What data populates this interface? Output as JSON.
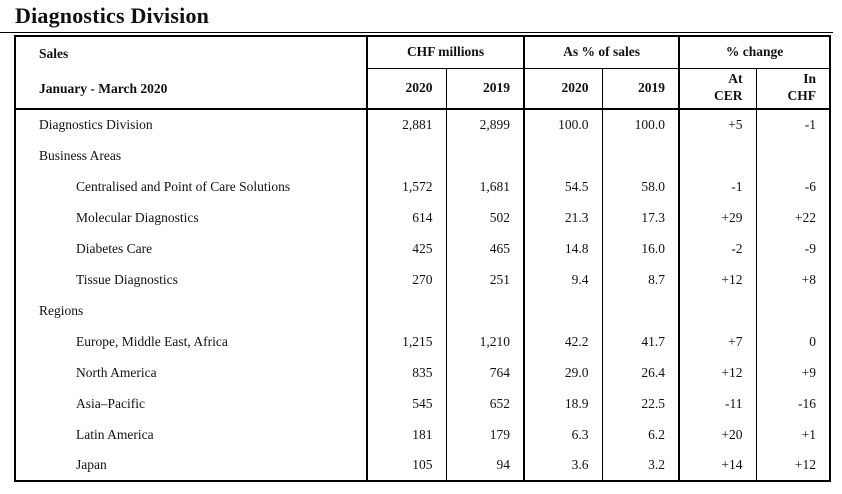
{
  "page_title": "Diagnostics Division",
  "colors": {
    "text": "#111111",
    "border": "#000000",
    "background": "#ffffff"
  },
  "table": {
    "header": {
      "sales_label": "Sales",
      "period_label": "January - March 2020",
      "groups": [
        {
          "label": "CHF millions",
          "cols": [
            "2020",
            "2019"
          ]
        },
        {
          "label": "As % of sales",
          "cols": [
            "2020",
            "2019"
          ]
        },
        {
          "label": "% change",
          "cols": [
            {
              "line1": "At",
              "line2": "CER"
            },
            {
              "line1": "In",
              "line2": "CHF"
            }
          ]
        }
      ]
    },
    "rows": [
      {
        "label": "Diagnostics Division",
        "indent": 0,
        "values": [
          "2,881",
          "2,899",
          "100.0",
          "100.0",
          "+5",
          "-1"
        ]
      },
      {
        "label": "Business Areas",
        "indent": 0,
        "values": [
          "",
          "",
          "",
          "",
          "",
          ""
        ]
      },
      {
        "label": "Centralised and Point of Care Solutions",
        "indent": 1,
        "values": [
          "1,572",
          "1,681",
          "54.5",
          "58.0",
          "-1",
          "-6"
        ]
      },
      {
        "label": "Molecular Diagnostics",
        "indent": 1,
        "values": [
          "614",
          "502",
          "21.3",
          "17.3",
          "+29",
          "+22"
        ]
      },
      {
        "label": "Diabetes Care",
        "indent": 1,
        "values": [
          "425",
          "465",
          "14.8",
          "16.0",
          "-2",
          "-9"
        ]
      },
      {
        "label": "Tissue Diagnostics",
        "indent": 1,
        "values": [
          "270",
          "251",
          "9.4",
          "8.7",
          "+12",
          "+8"
        ]
      },
      {
        "label": "Regions",
        "indent": 0,
        "values": [
          "",
          "",
          "",
          "",
          "",
          ""
        ]
      },
      {
        "label": "Europe, Middle East, Africa",
        "indent": 1,
        "values": [
          "1,215",
          "1,210",
          "42.2",
          "41.7",
          "+7",
          "0"
        ]
      },
      {
        "label": "North America",
        "indent": 1,
        "values": [
          "835",
          "764",
          "29.0",
          "26.4",
          "+12",
          "+9"
        ]
      },
      {
        "label": "Asia–Pacific",
        "indent": 1,
        "values": [
          "545",
          "652",
          "18.9",
          "22.5",
          "-11",
          "-16"
        ]
      },
      {
        "label": "Latin America",
        "indent": 1,
        "values": [
          "181",
          "179",
          "6.3",
          "6.2",
          "+20",
          "+1"
        ]
      },
      {
        "label": "Japan",
        "indent": 1,
        "values": [
          "105",
          "94",
          "3.6",
          "3.2",
          "+14",
          "+12"
        ]
      }
    ]
  }
}
